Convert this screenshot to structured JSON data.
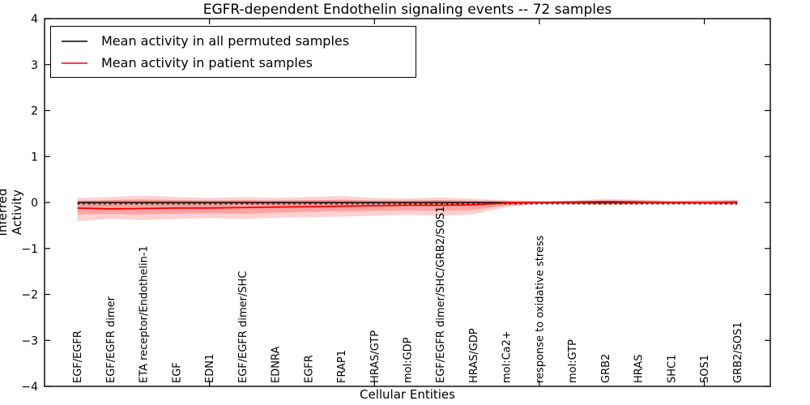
{
  "chart_data": {
    "type": "line",
    "title": "EGFR-dependent Endothelin signaling events -- 72 samples",
    "xlabel": "Cellular Entities",
    "ylabel": "Inferred Activity",
    "xlim": [
      0,
      22
    ],
    "ylim": [
      -4,
      4
    ],
    "grid": false,
    "yticks": [
      -4,
      -3,
      -2,
      -1,
      0,
      1,
      2,
      3,
      4
    ],
    "ytick_labels": [
      "−4",
      "−3",
      "−2",
      "−1",
      "0",
      "1",
      "2",
      "3",
      "4"
    ],
    "xticks": [
      5,
      10,
      15,
      20
    ],
    "categories": [
      "EGF/EGFR",
      "EGF/EGFR dimer",
      "ETA receptor/Endothelin-1",
      "EGF",
      "EDN1",
      "EGF/EGFR dimer/SHC",
      "EDNRA",
      "EGFR",
      "FRAP1",
      "HRAS/GTP",
      "mol:GDP",
      "EGF/EGFR dimer/SHC/GRB2/SOS1",
      "HRAS/GDP",
      "mol:Ca2+",
      "response to oxidative stress",
      "mol:GTP",
      "GRB2",
      "HRAS",
      "SHC1",
      "SOS1",
      "GRB2/SOS1"
    ],
    "series": [
      {
        "name": "Mean activity in all permuted samples",
        "color": "#000000",
        "values": [
          0,
          0,
          0,
          0,
          0,
          0,
          0,
          0,
          0,
          0,
          0,
          0,
          0,
          0,
          0,
          0,
          0,
          0,
          0,
          0,
          0
        ]
      },
      {
        "name": "Mean activity in patient samples",
        "color": "#ff0000",
        "values": [
          -0.12,
          -0.14,
          -0.13,
          -0.12,
          -0.12,
          -0.11,
          -0.1,
          -0.09,
          -0.08,
          -0.07,
          -0.06,
          -0.06,
          -0.05,
          -0.01,
          0.0,
          0.01,
          0.02,
          0.01,
          0.0,
          0.0,
          0.01
        ]
      }
    ],
    "bands": [
      {
        "name": "permuted-range",
        "color": "rgba(0,0,0,0.10)",
        "low": [
          -0.07,
          -0.07,
          -0.06,
          -0.07,
          -0.07,
          -0.06,
          -0.07,
          -0.06,
          -0.06,
          -0.06,
          -0.06,
          -0.07,
          -0.06,
          -0.05,
          -0.04,
          -0.05,
          -0.05,
          -0.06,
          -0.05,
          -0.05,
          -0.05
        ],
        "high": [
          0.05,
          0.05,
          0.05,
          0.05,
          0.05,
          0.05,
          0.05,
          0.05,
          0.05,
          0.05,
          0.05,
          0.05,
          0.05,
          0.04,
          0.04,
          0.04,
          0.05,
          0.05,
          0.04,
          0.04,
          0.05
        ]
      },
      {
        "name": "patient-range-outer",
        "color": "rgba(255,0,0,0.18)",
        "low": [
          -0.4,
          -0.36,
          -0.38,
          -0.36,
          -0.34,
          -0.36,
          -0.33,
          -0.32,
          -0.31,
          -0.29,
          -0.27,
          -0.29,
          -0.26,
          -0.1,
          -0.03,
          -0.04,
          -0.06,
          -0.04,
          -0.03,
          -0.04,
          -0.06
        ],
        "high": [
          0.1,
          0.12,
          0.15,
          0.12,
          0.1,
          0.12,
          0.1,
          0.12,
          0.14,
          0.1,
          0.09,
          0.11,
          0.08,
          0.05,
          0.03,
          0.04,
          0.08,
          0.06,
          0.04,
          0.05,
          0.06
        ]
      },
      {
        "name": "patient-range-inner",
        "color": "rgba(255,0,0,0.22)",
        "low": [
          -0.26,
          -0.25,
          -0.26,
          -0.24,
          -0.23,
          -0.24,
          -0.22,
          -0.2,
          -0.19,
          -0.18,
          -0.17,
          -0.18,
          -0.16,
          -0.07,
          -0.02,
          -0.02,
          -0.04,
          -0.03,
          -0.02,
          -0.02,
          -0.04
        ],
        "high": [
          0.03,
          0.05,
          0.07,
          0.05,
          0.04,
          0.05,
          0.04,
          0.05,
          0.06,
          0.04,
          0.04,
          0.05,
          0.03,
          0.02,
          0.01,
          0.02,
          0.04,
          0.03,
          0.02,
          0.02,
          0.03
        ]
      }
    ],
    "reference_line": {
      "y": -0.03,
      "style": "dashed",
      "color": "#000000"
    },
    "legend": {
      "position": "upper-left"
    }
  }
}
